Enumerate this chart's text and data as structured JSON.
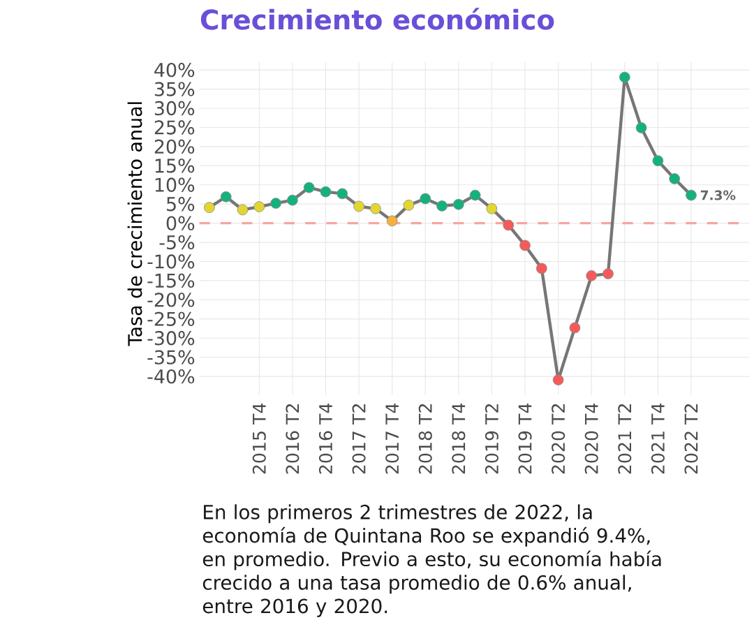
{
  "chart_data": {
    "type": "line",
    "title": "Crecimiento económico",
    "ylabel": "Tasa de crecimiento anual",
    "categories": [
      null,
      null,
      null,
      "2015 T4",
      null,
      "2016 T2",
      null,
      "2016 T4",
      null,
      "2017 T2",
      null,
      "2017 T4",
      null,
      "2018 T2",
      null,
      "2018 T4",
      null,
      "2019 T2",
      null,
      "2019 T4",
      null,
      "2020 T2",
      null,
      "2020 T4",
      null,
      "2021 T2",
      null,
      "2021 T4",
      null,
      "2022 T2"
    ],
    "series": [
      {
        "color": "#767676",
        "colors": [
          "#e3d631",
          "#14b17f",
          "#e3d631",
          "#e3d631",
          "#14b17f",
          "#14b17f",
          "#14b17f",
          "#14b17f",
          "#14b17f",
          "#e3d631",
          "#e3d631",
          "#f6b03c",
          "#e3d631",
          "#14b17f",
          "#14b17f",
          "#14b17f",
          "#14b17f",
          "#e3d631",
          "#f55a5a",
          "#f55a5a",
          "#f55a5a",
          "#f55a5a",
          "#f55a5a",
          "#f55a5a",
          "#f55a5a",
          "#14b17f",
          "#14b17f",
          "#14b17f",
          "#14b17f",
          "#14b17f"
        ],
        "values": [
          4.1,
          6.9,
          3.5,
          4.3,
          5.2,
          6.0,
          9.3,
          8.2,
          7.7,
          4.4,
          3.8,
          0.6,
          4.7,
          6.4,
          4.5,
          4.9,
          7.3,
          3.8,
          -0.5,
          -5.8,
          -11.8,
          -40.9,
          -27.3,
          -13.7,
          -13.2,
          38.1,
          24.9,
          16.3,
          11.6,
          7.3
        ],
        "value_labels": [
          null,
          null,
          null,
          null,
          null,
          null,
          null,
          null,
          null,
          null,
          null,
          null,
          null,
          null,
          null,
          null,
          null,
          null,
          null,
          null,
          null,
          null,
          null,
          null,
          null,
          null,
          null,
          null,
          null,
          "7.3%"
        ]
      }
    ],
    "ylim": [
      -44.8,
      42
    ],
    "yticks": [
      {
        "value": -40,
        "label": "-40%"
      },
      {
        "value": -35,
        "label": "-35%"
      },
      {
        "value": -30,
        "label": "-30%"
      },
      {
        "value": -25,
        "label": "-25%"
      },
      {
        "value": -20,
        "label": "-20%"
      },
      {
        "value": -15,
        "label": "-15%"
      },
      {
        "value": -10,
        "label": "-10%"
      },
      {
        "value": -5,
        "label": "-5%"
      },
      {
        "value": 0,
        "label": "0%"
      },
      {
        "value": 5,
        "label": "5%"
      },
      {
        "value": 10,
        "label": "10%"
      },
      {
        "value": 15,
        "label": "15%"
      },
      {
        "value": 20,
        "label": "20%"
      },
      {
        "value": 25,
        "label": "25%"
      },
      {
        "value": 30,
        "label": "30%"
      },
      {
        "value": 35,
        "label": "35%"
      },
      {
        "value": 40,
        "label": "40%"
      }
    ],
    "ref_lines": [
      {
        "axis": "y",
        "value": 0,
        "color": "#f8a5a0",
        "line_style": "dashed"
      }
    ],
    "grid": true,
    "marker": "circle",
    "annotations": [
      "En los primeros 2 trimestres de 2022, la economía de Quintana Roo se expandió 9.4%, en promedio. Previo a esto, su economía había crecido a una tasa promedio de 0.6% anual, entre 2016 y 2020."
    ]
  }
}
